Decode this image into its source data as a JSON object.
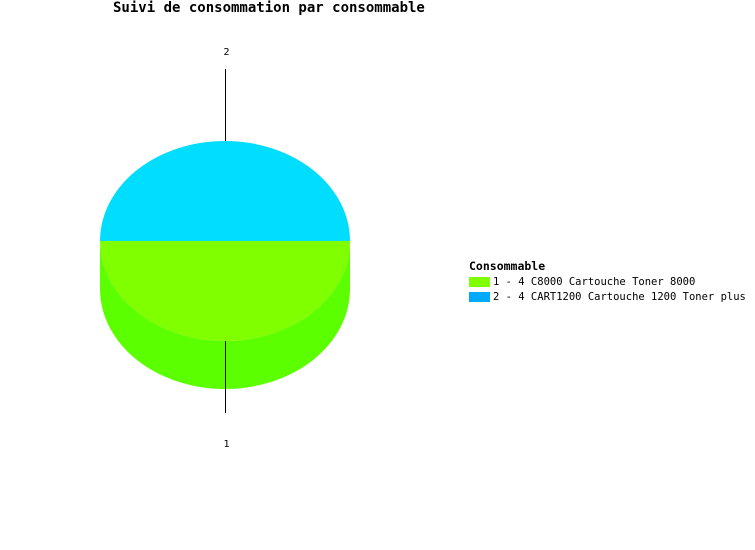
{
  "chart_data": {
    "type": "pie",
    "title": "Suivi de consommation par consommable",
    "legend_title": "Consommable",
    "legend_position": "right",
    "style": "3d",
    "slices": [
      {
        "label": "1",
        "legend": "1 - 4 C8000 Cartouche Toner 8000",
        "value": 50,
        "color": "#80ff00",
        "side_color": "#5cff00"
      },
      {
        "label": "2",
        "legend": "2 - 4 CART1200 Cartouche 1200 Toner plus",
        "value": 50,
        "color": "#00ddff",
        "legend_color": "#00aaff"
      }
    ]
  }
}
